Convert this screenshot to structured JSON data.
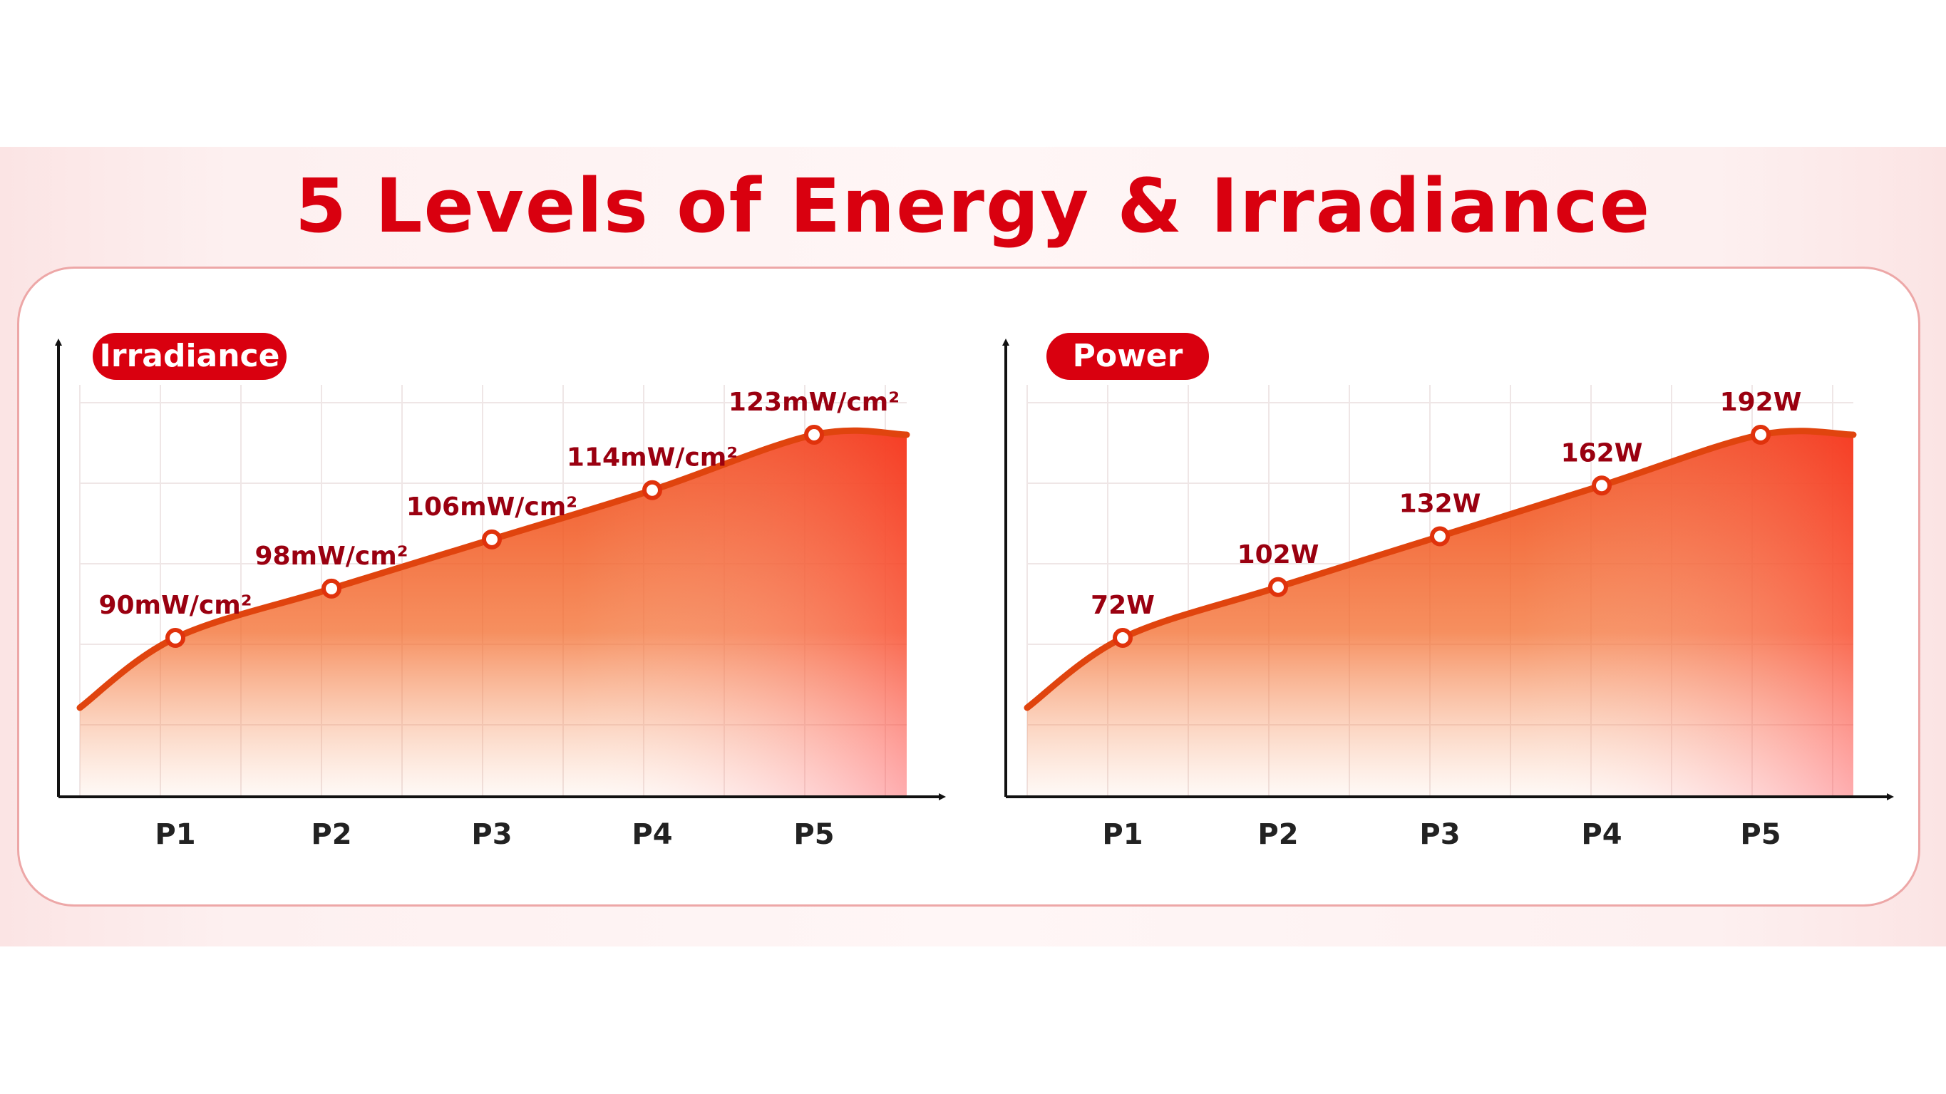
{
  "title": "5 Levels of Energy & Irradiance",
  "colors": {
    "accent": "#d9000f",
    "curve": "#e0440e",
    "axis": "#111111",
    "label": "#9a0010"
  },
  "chart_data": [
    {
      "type": "area",
      "title": "Irradiance",
      "categories": [
        "P1",
        "P2",
        "P3",
        "P4",
        "P5"
      ],
      "values": [
        90,
        98,
        106,
        114,
        123
      ],
      "data_labels": [
        "90mW/cm²",
        "98mW/cm²",
        "106mW/cm²",
        "114mW/cm²",
        "123mW/cm²"
      ],
      "unit": "mW/cm²",
      "grid": true,
      "legend": "none"
    },
    {
      "type": "area",
      "title": "Power",
      "categories": [
        "P1",
        "P2",
        "P3",
        "P4",
        "P5"
      ],
      "values": [
        72,
        102,
        132,
        162,
        192
      ],
      "data_labels": [
        "72W",
        "102W",
        "132W",
        "162W",
        "192W"
      ],
      "unit": "W",
      "grid": true,
      "legend": "none"
    }
  ]
}
